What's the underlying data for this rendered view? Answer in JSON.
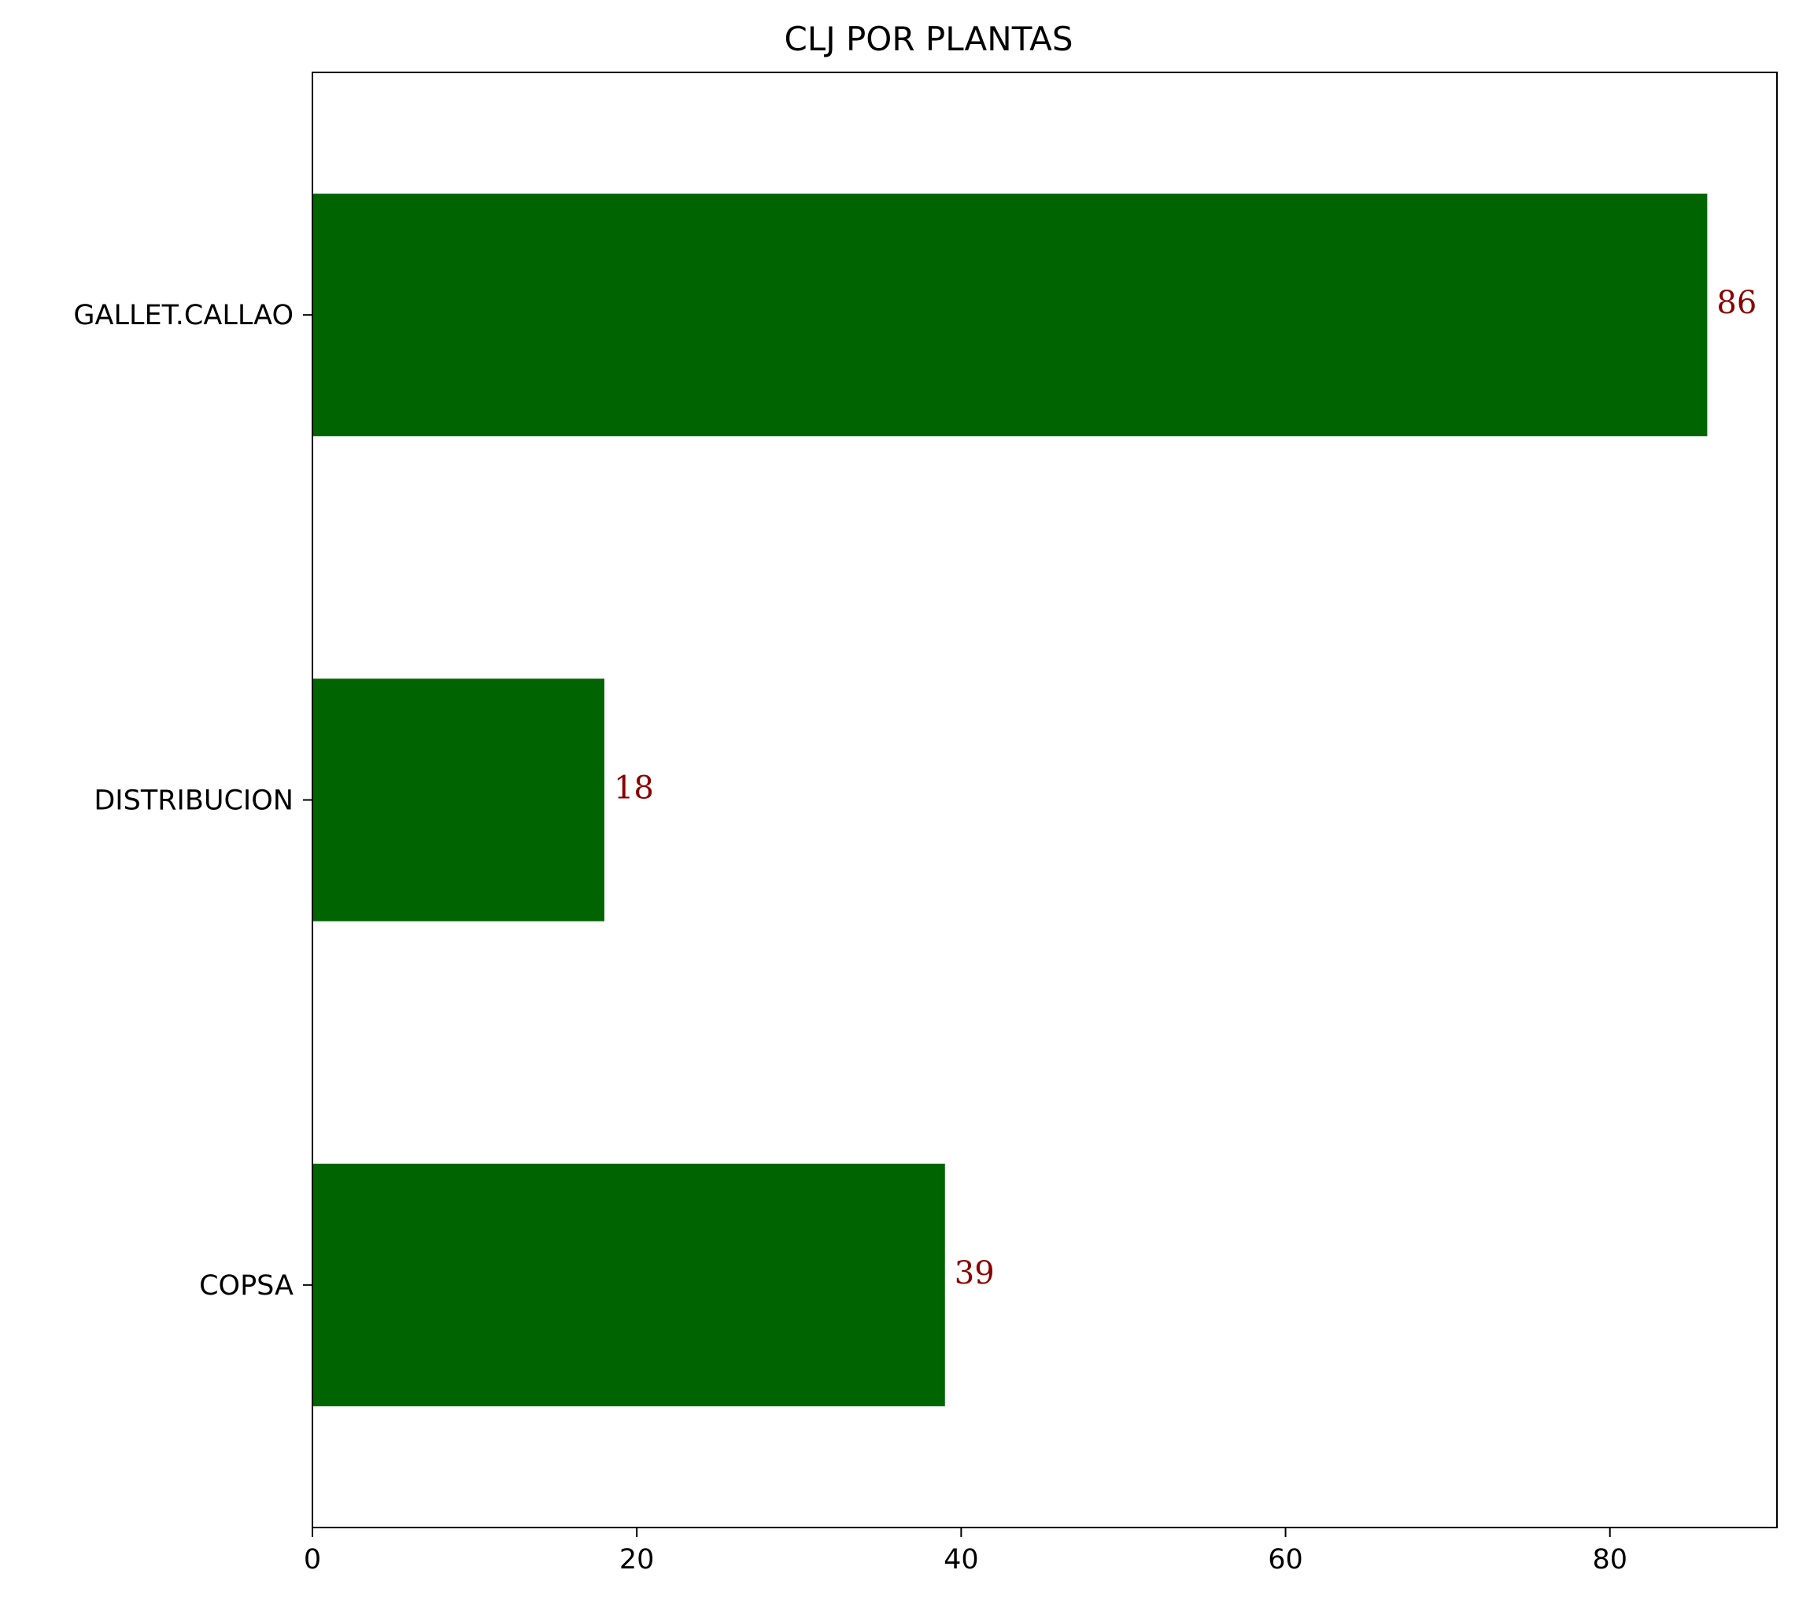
{
  "chart_data": {
    "type": "bar",
    "orientation": "horizontal",
    "title": "CLJ POR PLANTAS",
    "xlabel": "",
    "ylabel": "",
    "categories": [
      "GALLET.CALLAO",
      "DISTRIBUCION",
      "COPSA"
    ],
    "values": [
      86,
      18,
      39
    ],
    "data_labels": [
      "86",
      "18",
      "39"
    ],
    "xlim": [
      0,
      90.3
    ],
    "xticks": [
      0,
      20,
      40,
      60,
      80
    ],
    "xtick_labels": [
      "0",
      "20",
      "40",
      "60",
      "80"
    ],
    "grid": false,
    "legend": "none",
    "bar_color": "#006400",
    "label_color": "#8b0000"
  }
}
